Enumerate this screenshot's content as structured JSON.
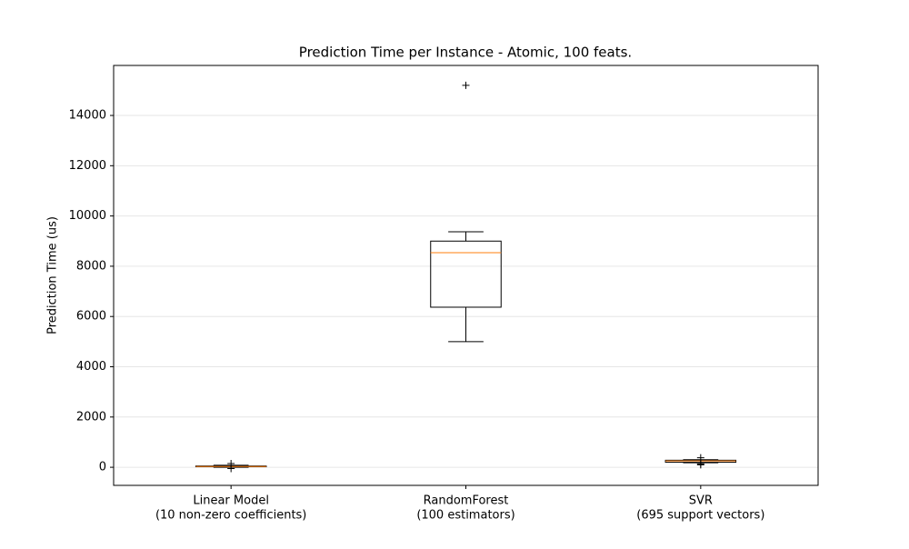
{
  "chart_data": {
    "type": "box",
    "title": "Prediction Time per Instance - Atomic, 100 feats.",
    "ylabel": "Prediction Time (us)",
    "categories": [
      [
        "Linear Model",
        "(10 non-zero coefficients)"
      ],
      [
        "RandomForest",
        "(100 estimators)"
      ],
      [
        "SVR",
        "(695 support vectors)"
      ]
    ],
    "boxes": [
      {
        "whislo": 0,
        "q1": 20,
        "median": 30,
        "q3": 50,
        "whishi": 80,
        "fliers": [
          150,
          -50
        ]
      },
      {
        "whislo": 5000,
        "q1": 6370,
        "median": 8540,
        "q3": 9000,
        "whishi": 9370,
        "fliers": [
          15200
        ]
      },
      {
        "whislo": 180,
        "q1": 200,
        "median": 250,
        "q3": 280,
        "whishi": 300,
        "fliers": [
          380,
          100,
          130
        ]
      }
    ],
    "box_color": "#000000",
    "median_color": "#ff7f0e",
    "ylim": [
      -720,
      15990
    ],
    "yticks": [
      0,
      2000,
      4000,
      6000,
      8000,
      10000,
      12000,
      14000
    ],
    "grid": true
  }
}
